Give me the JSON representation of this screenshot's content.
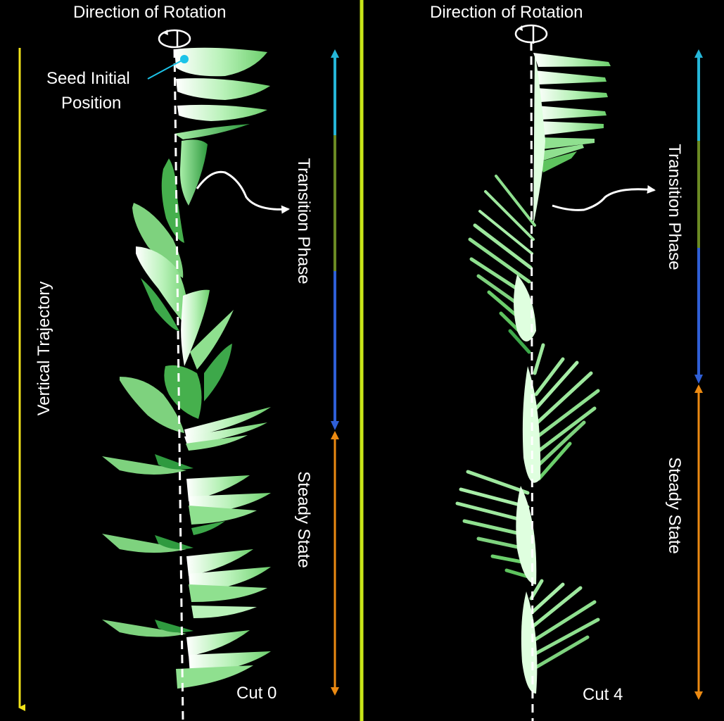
{
  "left_panel": {
    "title": "Direction of Rotation",
    "seed_label_line1": "Seed Initial",
    "seed_label_line2": "Position",
    "transition_label": "Transition Phase",
    "steady_label": "Steady State",
    "trajectory_label": "Vertical Trajectory",
    "cut_label": "Cut 0"
  },
  "right_panel": {
    "title": "Direction of Rotation",
    "transition_label": "Transition Phase",
    "steady_label": "Steady State",
    "cut_label": "Cut 4"
  },
  "colors": {
    "background": "#000000",
    "divider": "#c8e619",
    "trajectory_arrow": "#f0e21a",
    "phase_cyan": "#25b6d8",
    "phase_olive": "#6a8a23",
    "phase_blue": "#2f5fd6",
    "phase_orange": "#ec8a12",
    "seed_dot": "#1cc3e8",
    "wing_light": "#eaffea",
    "wing_mid": "#8fe08f",
    "wing_dark": "#3da84a"
  }
}
